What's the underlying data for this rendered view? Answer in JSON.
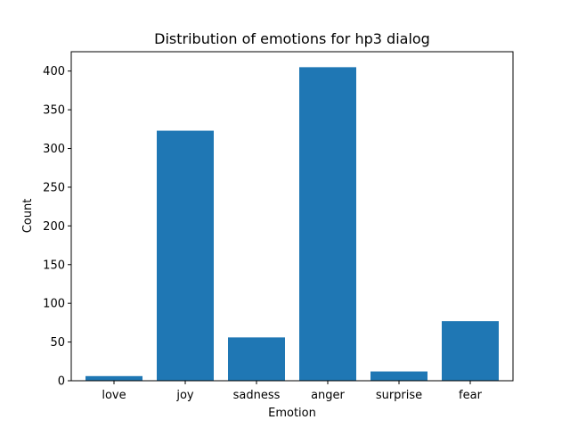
{
  "chart_data": {
    "type": "bar",
    "title": "Distribution of emotions for hp3 dialog",
    "xlabel": "Emotion",
    "ylabel": "Count",
    "categories": [
      "love",
      "joy",
      "sadness",
      "anger",
      "surprise",
      "fear"
    ],
    "values": [
      6,
      323,
      56,
      405,
      12,
      77
    ],
    "ylim": [
      0,
      425
    ],
    "yticks": [
      0,
      50,
      100,
      150,
      200,
      250,
      300,
      350,
      400
    ],
    "grid": false,
    "legend": "none",
    "bar_color": "#1f77b4"
  }
}
